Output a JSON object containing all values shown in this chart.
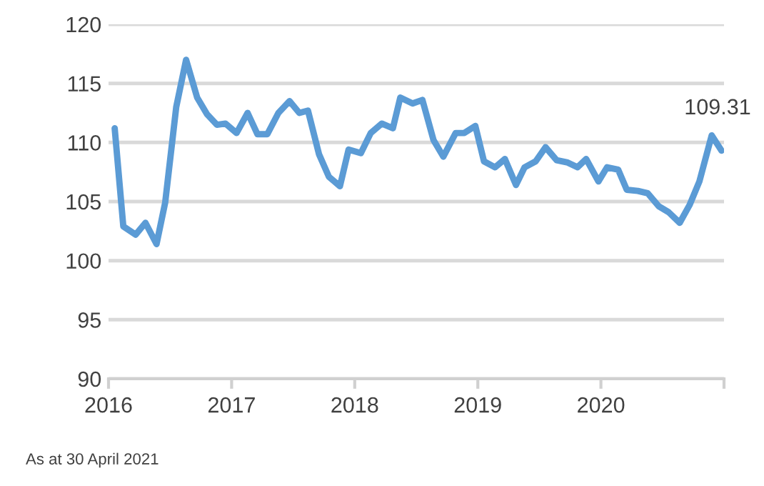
{
  "chart_data": {
    "type": "line",
    "x": [
      2016.05,
      2016.12,
      2016.22,
      2016.3,
      2016.39,
      2016.46,
      2016.55,
      2016.63,
      2016.72,
      2016.8,
      2016.88,
      2016.95,
      2017.04,
      2017.13,
      2017.21,
      2017.29,
      2017.38,
      2017.47,
      2017.55,
      2017.62,
      2017.71,
      2017.79,
      2017.88,
      2017.95,
      2018.05,
      2018.13,
      2018.22,
      2018.31,
      2018.37,
      2018.47,
      2018.55,
      2018.64,
      2018.72,
      2018.82,
      2018.89,
      2018.98,
      2019.05,
      2019.14,
      2019.22,
      2019.31,
      2019.38,
      2019.47,
      2019.55,
      2019.64,
      2019.73,
      2019.81,
      2019.88,
      2019.98,
      2020.05,
      2020.14,
      2020.21,
      2020.3,
      2020.38,
      2020.47,
      2020.55,
      2020.64,
      2020.72,
      2020.8,
      2020.9,
      2020.98
    ],
    "series": [
      {
        "color": "#5b9bd5",
        "values": [
          111.2,
          102.9,
          102.2,
          103.2,
          101.4,
          104.9,
          113.0,
          117.0,
          113.8,
          112.4,
          111.5,
          111.6,
          110.8,
          112.5,
          110.7,
          110.7,
          112.5,
          113.5,
          112.5,
          112.7,
          109.0,
          107.1,
          106.3,
          109.4,
          109.1,
          110.8,
          111.6,
          111.2,
          113.8,
          113.3,
          113.6,
          110.2,
          108.8,
          110.8,
          110.8,
          111.4,
          108.4,
          107.9,
          108.6,
          106.4,
          107.9,
          108.4,
          109.6,
          108.5,
          108.3,
          107.9,
          108.6,
          106.7,
          107.9,
          107.7,
          106.0,
          105.9,
          105.7,
          104.6,
          104.1,
          103.2,
          104.7,
          106.7,
          110.6,
          109.31
        ]
      }
    ],
    "xlim": [
      2016,
      2021
    ],
    "xticks": [
      2016,
      2017,
      2018,
      2019,
      2020,
      {
        "value": 2021,
        "label": null
      }
    ],
    "ylim": [
      90,
      120
    ],
    "yticks": [
      90,
      95,
      100,
      105,
      110,
      115,
      120
    ],
    "grid": "y",
    "marker": "none",
    "line_style": "solid",
    "annotations": [
      {
        "text": "109.31",
        "x": 2020.98,
        "y": 109.31
      },
      "As at 30 April 2021"
    ]
  }
}
